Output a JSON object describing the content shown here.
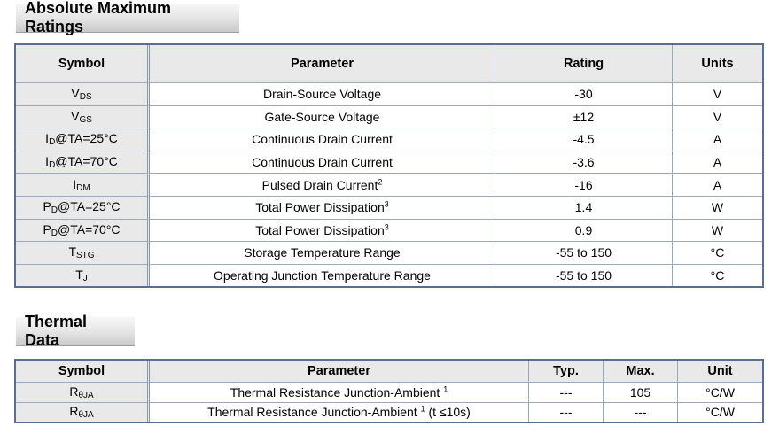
{
  "amr": {
    "title": "Absolute Maximum Ratings",
    "headers": {
      "symbol": "Symbol",
      "parameter": "Parameter",
      "rating": "Rating",
      "units": "Units"
    },
    "rows": [
      {
        "sym_main": "V",
        "sym_sub": "DS",
        "sym_rest": "",
        "parameter": "Drain-Source Voltage",
        "sup": "",
        "rating": "-30",
        "unit": "V"
      },
      {
        "sym_main": "V",
        "sym_sub": "GS",
        "sym_rest": "",
        "parameter": "Gate-Source Voltage",
        "sup": "",
        "rating": "±12",
        "unit": "V"
      },
      {
        "sym_main": "I",
        "sym_sub": "D",
        "sym_rest": "@TA=25°C",
        "parameter": "Continuous Drain Current",
        "sup": "",
        "rating": "-4.5",
        "unit": "A"
      },
      {
        "sym_main": "I",
        "sym_sub": "D",
        "sym_rest": "@TA=70°C",
        "parameter": "Continuous Drain Current",
        "sup": "",
        "rating": "-3.6",
        "unit": "A"
      },
      {
        "sym_main": "I",
        "sym_sub": "DM",
        "sym_rest": "",
        "parameter": "Pulsed Drain Current",
        "sup": "2",
        "rating": "-16",
        "unit": "A"
      },
      {
        "sym_main": "P",
        "sym_sub": "D",
        "sym_rest": "@TA=25°C",
        "parameter": "Total Power Dissipation",
        "sup": "3",
        "rating": "1.4",
        "unit": "W"
      },
      {
        "sym_main": "P",
        "sym_sub": "D",
        "sym_rest": "@TA=70°C",
        "parameter": "Total Power Dissipation",
        "sup": "3",
        "rating": "0.9",
        "unit": "W"
      },
      {
        "sym_main": "T",
        "sym_sub": "STG",
        "sym_rest": "",
        "parameter": "Storage Temperature Range",
        "sup": "",
        "rating": "-55 to 150",
        "unit": "°C"
      },
      {
        "sym_main": "T",
        "sym_sub": "J",
        "sym_rest": "",
        "parameter": "Operating Junction Temperature Range",
        "sup": "",
        "rating": "-55 to 150",
        "unit": "°C"
      }
    ]
  },
  "thermal": {
    "title": "Thermal Data",
    "headers": {
      "symbol": "Symbol",
      "parameter": "Parameter",
      "typ": "Typ.",
      "max": "Max.",
      "unit": "Unit"
    },
    "rows": [
      {
        "sym_main": "R",
        "sym_sub": "θJA",
        "parameter": "Thermal Resistance Junction-Ambient ",
        "sup": "1",
        "param_tail": "",
        "typ": "---",
        "max": "105",
        "unit": "°C/W"
      },
      {
        "sym_main": "R",
        "sym_sub": "θJA",
        "parameter": "Thermal Resistance Junction-Ambient ",
        "sup": "1",
        "param_tail": " (t ≤10s)",
        "typ": "---",
        "max": "---",
        "unit": "°C/W"
      }
    ]
  }
}
